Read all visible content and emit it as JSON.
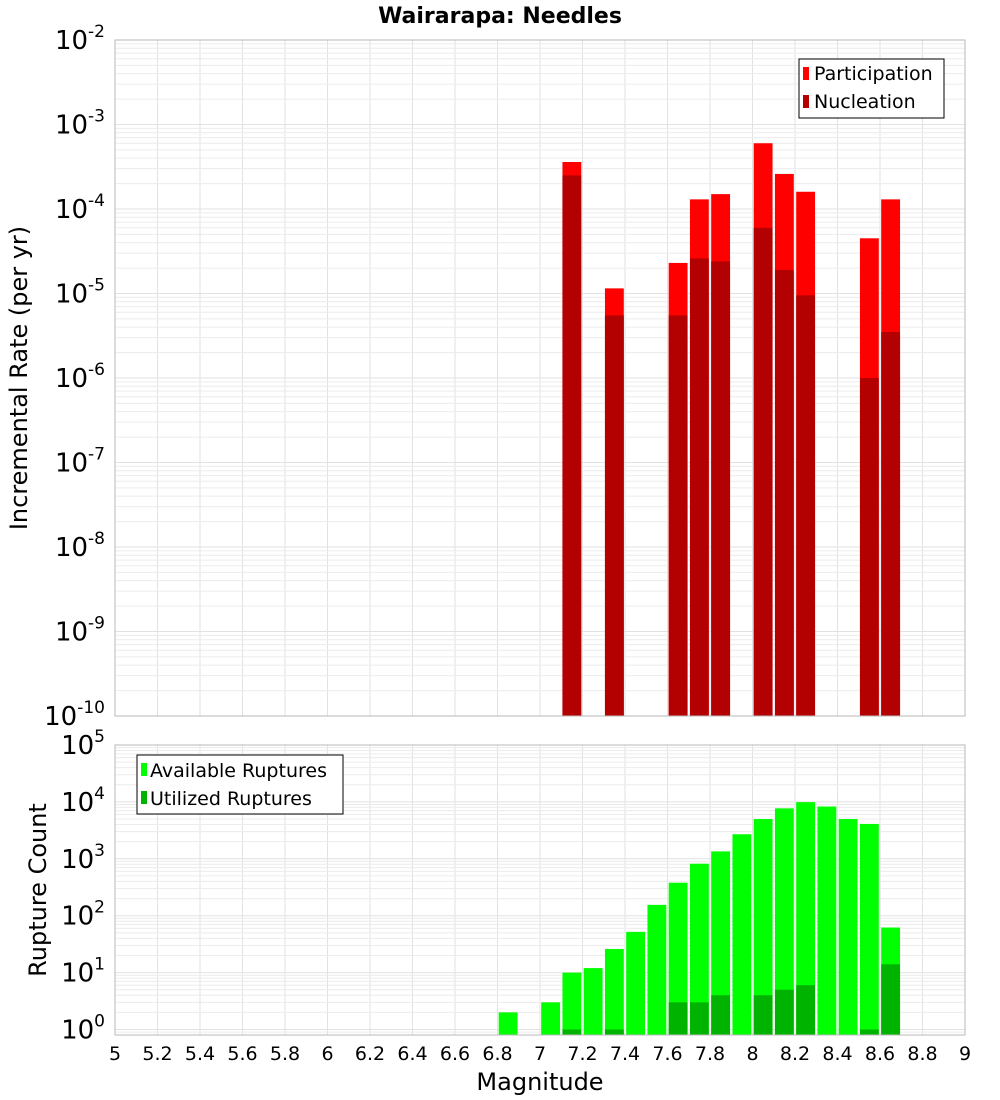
{
  "title": "Wairarapa: Needles",
  "chart_data": [
    {
      "type": "bar",
      "name": "incremental-rate-panel",
      "ylabel": "Incremental Rate (per yr)",
      "yscale": "log",
      "ylim": [
        1e-10,
        0.01
      ],
      "y_ticks": [
        {
          "base": "10",
          "exp": "-10",
          "value": 1e-10
        },
        {
          "base": "10",
          "exp": "-9",
          "value": 1e-09
        },
        {
          "base": "10",
          "exp": "-8",
          "value": 1e-08
        },
        {
          "base": "10",
          "exp": "-7",
          "value": 1e-07
        },
        {
          "base": "10",
          "exp": "-6",
          "value": 1e-06
        },
        {
          "base": "10",
          "exp": "-5",
          "value": 1e-05
        },
        {
          "base": "10",
          "exp": "-4",
          "value": 0.0001
        },
        {
          "base": "10",
          "exp": "-3",
          "value": 0.001
        },
        {
          "base": "10",
          "exp": "-2",
          "value": 0.01
        }
      ],
      "xlim": [
        5,
        9
      ],
      "bin_width": 0.1,
      "grid": true,
      "legend_position": "top-right",
      "series": [
        {
          "name": "Participation",
          "color": "#ff0000",
          "points": [
            {
              "x": 7.15,
              "y": 0.00036
            },
            {
              "x": 7.35,
              "y": 1.15e-05
            },
            {
              "x": 7.65,
              "y": 2.3e-05
            },
            {
              "x": 7.75,
              "y": 0.00013
            },
            {
              "x": 7.85,
              "y": 0.00015
            },
            {
              "x": 8.05,
              "y": 0.0006
            },
            {
              "x": 8.15,
              "y": 0.00026
            },
            {
              "x": 8.25,
              "y": 0.00016
            },
            {
              "x": 8.55,
              "y": 4.5e-05
            },
            {
              "x": 8.65,
              "y": 0.00013
            }
          ]
        },
        {
          "name": "Nucleation",
          "color": "#b30000",
          "points": [
            {
              "x": 7.15,
              "y": 0.00025
            },
            {
              "x": 7.35,
              "y": 5.5e-06
            },
            {
              "x": 7.65,
              "y": 5.5e-06
            },
            {
              "x": 7.75,
              "y": 2.6e-05
            },
            {
              "x": 7.85,
              "y": 2.4e-05
            },
            {
              "x": 8.05,
              "y": 6e-05
            },
            {
              "x": 8.15,
              "y": 1.9e-05
            },
            {
              "x": 8.25,
              "y": 9.5e-06
            },
            {
              "x": 8.55,
              "y": 1e-06
            },
            {
              "x": 8.65,
              "y": 3.5e-06
            }
          ]
        }
      ]
    },
    {
      "type": "bar",
      "name": "rupture-count-panel",
      "xlabel": "Magnitude",
      "ylabel": "Rupture Count",
      "yscale": "log",
      "ylim": [
        0.8,
        100000.0
      ],
      "y_ticks": [
        {
          "base": "10",
          "exp": "0",
          "value": 1
        },
        {
          "base": "10",
          "exp": "1",
          "value": 10
        },
        {
          "base": "10",
          "exp": "2",
          "value": 100
        },
        {
          "base": "10",
          "exp": "3",
          "value": 1000
        },
        {
          "base": "10",
          "exp": "4",
          "value": 10000
        },
        {
          "base": "10",
          "exp": "5",
          "value": 100000
        }
      ],
      "xlim": [
        5,
        9
      ],
      "x_ticks": [
        "5",
        "5.2",
        "5.4",
        "5.6",
        "5.8",
        "6",
        "6.2",
        "6.4",
        "6.6",
        "6.8",
        "7",
        "7.2",
        "7.4",
        "7.6",
        "7.8",
        "8",
        "8.2",
        "8.4",
        "8.6",
        "8.8",
        "9"
      ],
      "bin_width": 0.1,
      "grid": true,
      "legend_position": "top-left",
      "series": [
        {
          "name": "Available Ruptures",
          "color": "#00ff00",
          "points": [
            {
              "x": 6.85,
              "y": 2
            },
            {
              "x": 7.05,
              "y": 3
            },
            {
              "x": 7.15,
              "y": 10
            },
            {
              "x": 7.25,
              "y": 12
            },
            {
              "x": 7.35,
              "y": 26
            },
            {
              "x": 7.45,
              "y": 52
            },
            {
              "x": 7.55,
              "y": 155
            },
            {
              "x": 7.65,
              "y": 380
            },
            {
              "x": 7.75,
              "y": 820
            },
            {
              "x": 7.85,
              "y": 1350
            },
            {
              "x": 7.95,
              "y": 2700
            },
            {
              "x": 8.05,
              "y": 5000
            },
            {
              "x": 8.15,
              "y": 7700
            },
            {
              "x": 8.25,
              "y": 9900
            },
            {
              "x": 8.35,
              "y": 8300
            },
            {
              "x": 8.45,
              "y": 5000
            },
            {
              "x": 8.55,
              "y": 4100
            },
            {
              "x": 8.65,
              "y": 62
            }
          ]
        },
        {
          "name": "Utilized Ruptures",
          "color": "#00b300",
          "points": [
            {
              "x": 7.15,
              "y": 1
            },
            {
              "x": 7.35,
              "y": 1
            },
            {
              "x": 7.65,
              "y": 3
            },
            {
              "x": 7.75,
              "y": 3
            },
            {
              "x": 7.85,
              "y": 4
            },
            {
              "x": 8.05,
              "y": 4
            },
            {
              "x": 8.15,
              "y": 5
            },
            {
              "x": 8.25,
              "y": 6
            },
            {
              "x": 8.55,
              "y": 1
            },
            {
              "x": 8.65,
              "y": 14
            }
          ]
        }
      ]
    }
  ]
}
